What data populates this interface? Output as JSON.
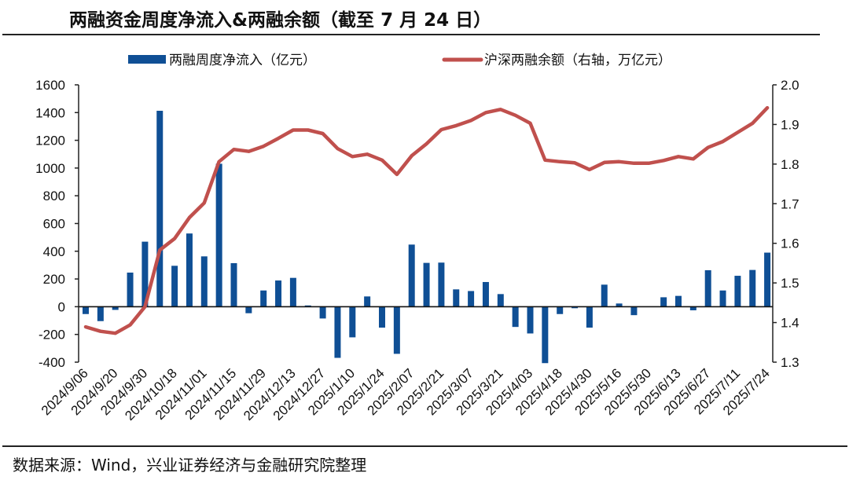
{
  "title": "两融资金周度净流入&两融余额（截至 7 月 24 日）",
  "source": "数据来源：Wind，兴业证券经济与金融研究院整理",
  "chart_data": {
    "type": "bar+line",
    "title": "两融资金周度净流入&两融余额（截至 7 月 24 日）",
    "legend_position": "top",
    "grid": false,
    "categories": [
      "2024/9/06",
      "",
      "2024/9/20",
      "",
      "2024/9/30",
      "",
      "2024/10/18",
      "",
      "2024/11/01",
      "",
      "2024/11/15",
      "",
      "2024/11/29",
      "",
      "2024/12/13",
      "",
      "2024/12/27",
      "",
      "2025/1/10",
      "",
      "2025/1/24",
      "",
      "2025/2/07",
      "",
      "2025/2/21",
      "",
      "2025/3/07",
      "",
      "2025/3/21",
      "",
      "2025/4/03",
      "",
      "2025/4/18",
      "",
      "2025/4/30",
      "",
      "2025/5/16",
      "",
      "2025/5/30",
      "",
      "2025/6/13",
      "",
      "2025/6/27",
      "",
      "2025/7/11",
      "",
      "2025/7/24"
    ],
    "y_left": {
      "ylim": [
        -400,
        1600
      ],
      "ticks": [
        -400,
        -200,
        0,
        200,
        400,
        600,
        800,
        1000,
        1200,
        1400,
        1600
      ]
    },
    "y_right": {
      "ylim": [
        1.3,
        2.0
      ],
      "ticks": [
        "1.3",
        "1.4",
        "1.5",
        "1.6",
        "1.7",
        "1.8",
        "1.9",
        "2.0"
      ]
    },
    "series": [
      {
        "name": "两融周度净流入（亿元）",
        "type": "bar",
        "axis": "left",
        "color": "#0f4f95",
        "values": [
          -53,
          -104,
          -23,
          246,
          469,
          1413,
          295,
          528,
          363,
          1031,
          314,
          -47,
          117,
          189,
          208,
          9,
          -85,
          -369,
          -221,
          74,
          -151,
          -340,
          448,
          316,
          318,
          125,
          113,
          178,
          91,
          -146,
          -193,
          -407,
          -53,
          -11,
          -151,
          159,
          23,
          -61,
          0,
          68,
          78,
          -26,
          263,
          117,
          223,
          265,
          390
        ]
      },
      {
        "name": "沪深两融余额（右轴，万亿元）",
        "type": "line",
        "axis": "right",
        "color": "#c0504d",
        "values": [
          1.389,
          1.378,
          1.373,
          1.394,
          1.44,
          1.583,
          1.612,
          1.665,
          1.702,
          1.806,
          1.837,
          1.832,
          1.845,
          1.865,
          1.886,
          1.886,
          1.877,
          1.839,
          1.819,
          1.825,
          1.81,
          1.774,
          1.821,
          1.851,
          1.887,
          1.897,
          1.91,
          1.93,
          1.938,
          1.923,
          1.903,
          1.81,
          1.806,
          1.803,
          1.786,
          1.804,
          1.806,
          1.802,
          1.802,
          1.809,
          1.819,
          1.813,
          1.842,
          1.857,
          1.88,
          1.903,
          1.942
        ]
      }
    ]
  }
}
